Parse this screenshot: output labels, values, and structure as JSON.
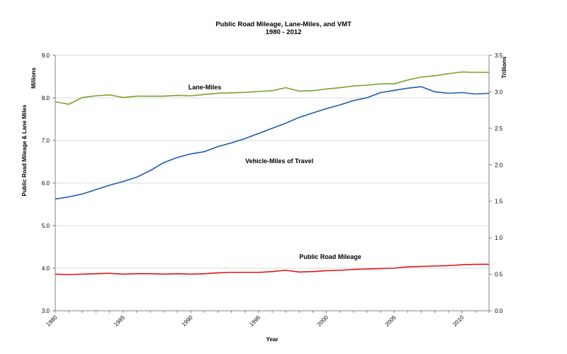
{
  "chart_data": {
    "type": "line",
    "title": "Public Road Mileage, Lane-Miles, and VMT",
    "subtitle": "1980 - 2012",
    "xlabel": "Year",
    "ylabel_left": "Public Road Mileage & Lane Miles",
    "ylabel_right": "",
    "units_left": "Millions",
    "units_right": "Trillions",
    "xlim": [
      1980,
      2012
    ],
    "x_ticks": [
      "1980",
      "1985",
      "1990",
      "1995",
      "2000",
      "2005",
      "2010"
    ],
    "ylim_left": [
      3.0,
      9.0
    ],
    "y_ticks_left": [
      "3.0",
      "4.0",
      "5.0",
      "6.0",
      "7.0",
      "8.0",
      "9.0"
    ],
    "ylim_right": [
      0.0,
      3.5
    ],
    "y_ticks_right": [
      "0.0",
      "0.5",
      "1.0",
      "1.5",
      "2.0",
      "2.5",
      "3.0",
      "3.5"
    ],
    "grid": true,
    "legend": "inline labels",
    "x": [
      1980,
      1981,
      1982,
      1983,
      1984,
      1985,
      1986,
      1987,
      1988,
      1989,
      1990,
      1991,
      1992,
      1993,
      1994,
      1995,
      1996,
      1997,
      1998,
      1999,
      2000,
      2001,
      2002,
      2003,
      2004,
      2005,
      2006,
      2007,
      2008,
      2009,
      2010,
      2011,
      2012
    ],
    "series": [
      {
        "name": "Lane-Miles",
        "axis": "left",
        "color": "#77a32f",
        "values": [
          7.91,
          7.85,
          8.01,
          8.05,
          8.07,
          8.01,
          8.04,
          8.04,
          8.04,
          8.06,
          8.05,
          8.08,
          8.11,
          8.12,
          8.13,
          8.15,
          8.17,
          8.24,
          8.16,
          8.17,
          8.21,
          8.24,
          8.28,
          8.3,
          8.33,
          8.33,
          8.42,
          8.49,
          8.52,
          8.57,
          8.61,
          8.6,
          8.6
        ]
      },
      {
        "name": "Vehicle-Miles of Travel",
        "axis": "right",
        "color": "#1f5aa6",
        "values": [
          1.53,
          1.56,
          1.6,
          1.66,
          1.72,
          1.77,
          1.83,
          1.92,
          2.03,
          2.1,
          2.15,
          2.18,
          2.25,
          2.3,
          2.36,
          2.43,
          2.5,
          2.57,
          2.65,
          2.71,
          2.77,
          2.82,
          2.88,
          2.92,
          2.99,
          3.02,
          3.05,
          3.07,
          3.0,
          2.98,
          2.99,
          2.97,
          2.98
        ]
      },
      {
        "name": "Public Road Mileage",
        "axis": "left",
        "color": "#e3141a",
        "values": [
          3.86,
          3.85,
          3.86,
          3.87,
          3.88,
          3.86,
          3.87,
          3.87,
          3.86,
          3.87,
          3.86,
          3.87,
          3.89,
          3.9,
          3.9,
          3.9,
          3.92,
          3.95,
          3.91,
          3.92,
          3.94,
          3.95,
          3.97,
          3.98,
          3.99,
          4.0,
          4.03,
          4.04,
          4.05,
          4.06,
          4.08,
          4.09,
          4.09
        ]
      }
    ]
  }
}
